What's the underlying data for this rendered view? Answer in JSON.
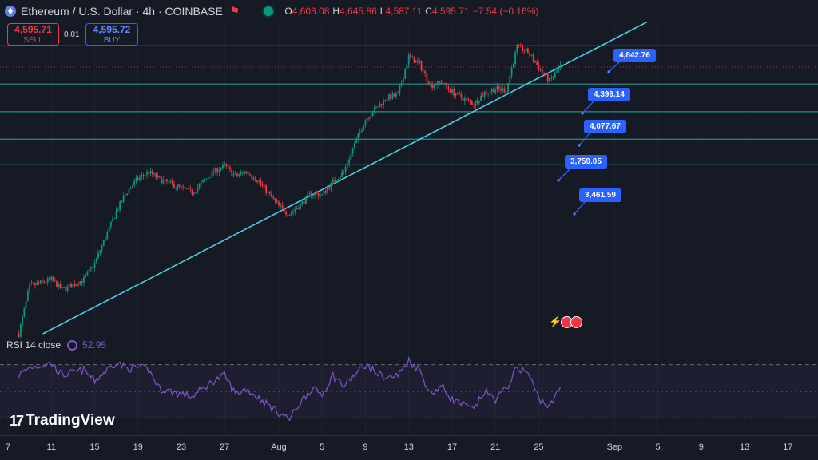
{
  "header": {
    "title": "Ethereum / U.S. Dollar · 4h · COINBASE",
    "ohlc": [
      {
        "k": "O",
        "v": "4,603.08"
      },
      {
        "k": "H",
        "v": "4,645.86"
      },
      {
        "k": "L",
        "v": "4,587.11"
      },
      {
        "k": "C",
        "v": "4,595.71"
      },
      {
        "k": "",
        "v": "−7.54 (−0.16%)"
      }
    ]
  },
  "trade": {
    "sell_price": "4,595.71",
    "sell_label": "SELL",
    "spread": "0.01",
    "buy_price": "4,595.72",
    "buy_label": "BUY"
  },
  "rsi": {
    "label": "RSI 14 close",
    "value": "52.95"
  },
  "brand": {
    "name": "TradingView"
  },
  "colors": {
    "up": "#089981",
    "down": "#f23645",
    "level": "#26a69a",
    "trend": "#4dd0e1",
    "rsi": "#7e57c2",
    "callout": "#2962ff"
  },
  "chart_data": {
    "type": "candlestick",
    "symbol": "ETHUSD",
    "interval": "4h",
    "ylim": [
      1500,
      5300
    ],
    "levels": [
      {
        "label": "4,842.76",
        "value": 4842.76
      },
      {
        "label": "4,399.14",
        "value": 4399.14
      },
      {
        "label": "4,077.67",
        "value": 4077.67
      },
      {
        "label": "3,759.05",
        "value": 3759.05
      },
      {
        "label": "3,461.59",
        "value": 3461.59
      }
    ],
    "current_price": 4595.71,
    "trendline": [
      {
        "date": "Jul 8",
        "price": 1500
      },
      {
        "date": "Aug 27",
        "price": 4620
      }
    ],
    "x_ticks": [
      "7",
      "11",
      "15",
      "19",
      "23",
      "27",
      "Aug",
      "5",
      "9",
      "13",
      "17",
      "21",
      "25",
      "Sep",
      "5",
      "9",
      "13",
      "17"
    ],
    "path": [
      [
        "Jul 8",
        1500
      ],
      [
        "Jul 9",
        2050
      ],
      [
        "Jul 11",
        2130
      ],
      [
        "Jul 12",
        2010
      ],
      [
        "Jul 14",
        2130
      ],
      [
        "Jul 15",
        2320
      ],
      [
        "Jul 17",
        2920
      ],
      [
        "Jul 18",
        3150
      ],
      [
        "Jul 19",
        3300
      ],
      [
        "Jul 20",
        3380
      ],
      [
        "Jul 21",
        3290
      ],
      [
        "Jul 22",
        3240
      ],
      [
        "Jul 24",
        3140
      ],
      [
        "Jul 26",
        3380
      ],
      [
        "Jul 27",
        3450
      ],
      [
        "Jul 28",
        3330
      ],
      [
        "Jul 29",
        3380
      ],
      [
        "Jul 30",
        3290
      ],
      [
        "Aug 1",
        2980
      ],
      [
        "Aug 2",
        2890
      ],
      [
        "Aug 3",
        3000
      ],
      [
        "Aug 4",
        3130
      ],
      [
        "Aug 5",
        3110
      ],
      [
        "Aug 6",
        3260
      ],
      [
        "Aug 7",
        3380
      ],
      [
        "Aug 8",
        3700
      ],
      [
        "Aug 9",
        3990
      ],
      [
        "Aug 10",
        4120
      ],
      [
        "Aug 11",
        4240
      ],
      [
        "Aug 12",
        4270
      ],
      [
        "Aug 13",
        4720
      ],
      [
        "Aug 14",
        4630
      ],
      [
        "Aug 15",
        4380
      ],
      [
        "Aug 16",
        4420
      ],
      [
        "Aug 17",
        4310
      ],
      [
        "Aug 18",
        4230
      ],
      [
        "Aug 19",
        4170
      ],
      [
        "Aug 20",
        4300
      ],
      [
        "Aug 21",
        4340
      ],
      [
        "Aug 22",
        4330
      ],
      [
        "Aug 23",
        4830
      ],
      [
        "Aug 24",
        4770
      ],
      [
        "Aug 25",
        4590
      ],
      [
        "Aug 26",
        4430
      ],
      [
        "Aug 27",
        4600
      ]
    ],
    "rsi_path": [
      [
        "Jul 8",
        62
      ],
      [
        "Jul 9",
        68
      ],
      [
        "Jul 11",
        71
      ],
      [
        "Jul 12",
        62
      ],
      [
        "Jul 14",
        66
      ],
      [
        "Jul 15",
        58
      ],
      [
        "Jul 17",
        72
      ],
      [
        "Jul 18",
        67
      ],
      [
        "Jul 19",
        68
      ],
      [
        "Jul 20",
        66
      ],
      [
        "Jul 21",
        52
      ],
      [
        "Jul 22",
        50
      ],
      [
        "Jul 24",
        46
      ],
      [
        "Jul 26",
        58
      ],
      [
        "Jul 27",
        62
      ],
      [
        "Jul 28",
        48
      ],
      [
        "Jul 29",
        52
      ],
      [
        "Jul 30",
        46
      ],
      [
        "Aug 1",
        34
      ],
      [
        "Aug 2",
        29
      ],
      [
        "Aug 3",
        42
      ],
      [
        "Aug 4",
        52
      ],
      [
        "Aug 5",
        48
      ],
      [
        "Aug 6",
        62
      ],
      [
        "Aug 7",
        54
      ],
      [
        "Aug 8",
        62
      ],
      [
        "Aug 9",
        70
      ],
      [
        "Aug 10",
        64
      ],
      [
        "Aug 11",
        60
      ],
      [
        "Aug 12",
        62
      ],
      [
        "Aug 13",
        73
      ],
      [
        "Aug 14",
        66
      ],
      [
        "Aug 15",
        48
      ],
      [
        "Aug 16",
        54
      ],
      [
        "Aug 17",
        44
      ],
      [
        "Aug 18",
        40
      ],
      [
        "Aug 19",
        36
      ],
      [
        "Aug 20",
        50
      ],
      [
        "Aug 21",
        44
      ],
      [
        "Aug 22",
        52
      ],
      [
        "Aug 23",
        68
      ],
      [
        "Aug 24",
        64
      ],
      [
        "Aug 25",
        45
      ],
      [
        "Aug 26",
        38
      ],
      [
        "Aug 27",
        53
      ]
    ],
    "rsi_bands": [
      70,
      50,
      30
    ]
  }
}
